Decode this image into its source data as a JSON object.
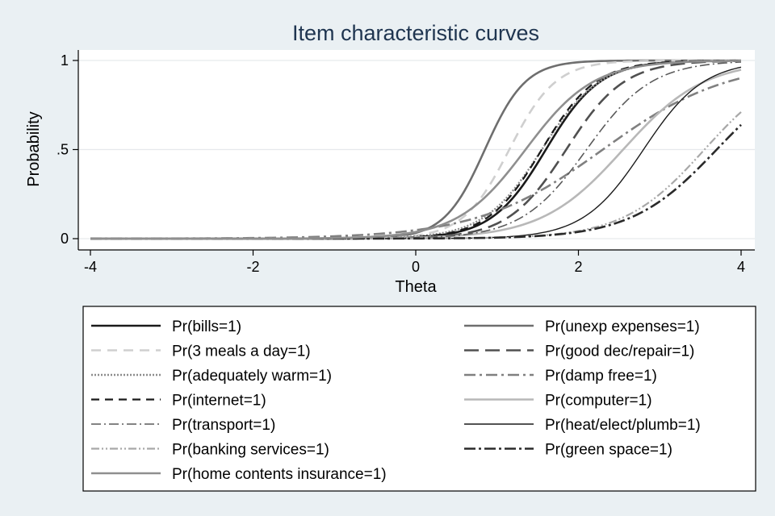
{
  "chart_data": {
    "type": "line",
    "title": "Item characteristic curves",
    "xlabel": "Theta",
    "ylabel": "Probability",
    "xlim": [
      -4,
      4
    ],
    "ylim": [
      0,
      1
    ],
    "xticks": [
      {
        "value": -4,
        "label": "-4"
      },
      {
        "value": -2,
        "label": "-2"
      },
      {
        "value": 0,
        "label": "0"
      },
      {
        "value": 2,
        "label": "2"
      },
      {
        "value": 4,
        "label": "4"
      }
    ],
    "yticks": [
      {
        "value": 0,
        "label": "0"
      },
      {
        "value": 0.5,
        "label": ".5"
      },
      {
        "value": 1,
        "label": "1"
      }
    ],
    "grid": true,
    "legend_position": "bottom",
    "series": [
      {
        "name": "Pr(bills=1)",
        "a": 3.0,
        "b": 1.6,
        "color": "#1a1a1a",
        "dash": "",
        "width": 2.6
      },
      {
        "name": "Pr(unexp expenses=1)",
        "a": 4.0,
        "b": 0.85,
        "color": "#6e6e6e",
        "dash": "",
        "width": 2.6
      },
      {
        "name": "Pr(3 meals a day=1)",
        "a": 3.5,
        "b": 1.15,
        "color": "#cfcfcf",
        "dash": "12 8",
        "width": 2.6
      },
      {
        "name": "Pr(good dec/repair=1)",
        "a": 2.8,
        "b": 1.85,
        "color": "#505050",
        "dash": "18 8",
        "width": 2.6
      },
      {
        "name": "Pr(adequately warm=1)",
        "a": 2.8,
        "b": 1.55,
        "color": "#8c8c8c",
        "dash": "2 2",
        "width": 2.4
      },
      {
        "name": "Pr(damp free=1)",
        "a": 1.3,
        "b": 2.3,
        "color": "#808080",
        "dash": "14 5 3 5",
        "width": 2.6
      },
      {
        "name": "Pr(internet=1)",
        "a": 3.0,
        "b": 1.55,
        "color": "#1a1a1a",
        "dash": "10 7",
        "width": 2.2
      },
      {
        "name": "Pr(computer=1)",
        "a": 2.0,
        "b": 2.55,
        "color": "#b8b8b8",
        "dash": "",
        "width": 2.6
      },
      {
        "name": "Pr(transport=1)",
        "a": 2.5,
        "b": 2.1,
        "color": "#5a5a5a",
        "dash": "12 4 2 4",
        "width": 1.6
      },
      {
        "name": "Pr(heat/elect/plumb=1)",
        "a": 2.7,
        "b": 2.8,
        "color": "#1a1a1a",
        "dash": "",
        "width": 1.4
      },
      {
        "name": "Pr(banking services=1)",
        "a": 2.0,
        "b": 3.55,
        "color": "#a8a8a8",
        "dash": "10 3 2 3 2 3",
        "width": 2.2
      },
      {
        "name": "Pr(green space=1)",
        "a": 1.9,
        "b": 3.7,
        "color": "#2a2a2a",
        "dash": "14 4 3 4",
        "width": 2.6
      },
      {
        "name": "Pr(home contents insurance=1)",
        "a": 2.4,
        "b": 1.35,
        "color": "#8f8f8f",
        "dash": "",
        "width": 2.6
      }
    ]
  }
}
